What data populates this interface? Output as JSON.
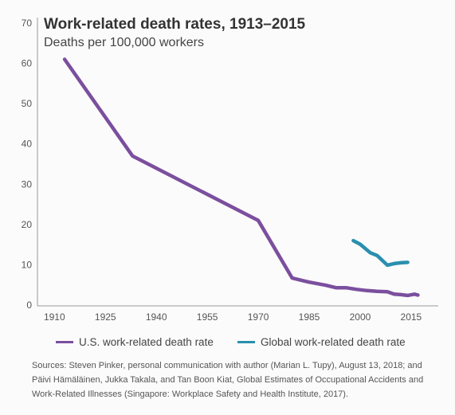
{
  "chart_data": {
    "type": "line",
    "title": "Work-related death rates, 1913–2015",
    "subtitle": "Deaths per 100,000 workers",
    "xlim": [
      1905,
      2023
    ],
    "ylim": [
      0,
      70
    ],
    "x_ticks": [
      1910,
      1925,
      1940,
      1955,
      1970,
      1985,
      2000,
      2015
    ],
    "y_ticks": [
      0,
      10,
      20,
      30,
      40,
      50,
      60,
      70
    ],
    "grid": false,
    "legend_position": "bottom",
    "series": [
      {
        "name": "U.S. work-related death rate",
        "color": "#7b4f9e",
        "points": [
          [
            1913,
            61
          ],
          [
            1933,
            37
          ],
          [
            1970,
            21
          ],
          [
            1980,
            6.7
          ],
          [
            1985,
            5.7
          ],
          [
            1990,
            4.9
          ],
          [
            1993,
            4.3
          ],
          [
            1996,
            4.3
          ],
          [
            1999,
            3.9
          ],
          [
            2002,
            3.6
          ],
          [
            2005,
            3.4
          ],
          [
            2008,
            3.3
          ],
          [
            2010,
            2.7
          ],
          [
            2012,
            2.6
          ],
          [
            2014,
            2.4
          ],
          [
            2016,
            2.7
          ],
          [
            2017,
            2.5
          ]
        ]
      },
      {
        "name": "Global work-related death rate",
        "color": "#2a8fae",
        "points": [
          [
            1998,
            16
          ],
          [
            2000,
            15.1
          ],
          [
            2003,
            13
          ],
          [
            2005,
            12.3
          ],
          [
            2008,
            9.9
          ],
          [
            2010,
            10.3
          ],
          [
            2012,
            10.5
          ],
          [
            2014,
            10.6
          ]
        ]
      }
    ]
  },
  "sources": "Sources: Steven Pinker, personal communication with author (Marian L. Tupy), August 13, 2018; and Päivi Hämäläinen, Jukka Takala, and Tan Boon Kiat, Global Estimates of Occupational Accidents and Work-Related Illnesses (Singapore: Workplace Safety and Health Institute, 2017)."
}
